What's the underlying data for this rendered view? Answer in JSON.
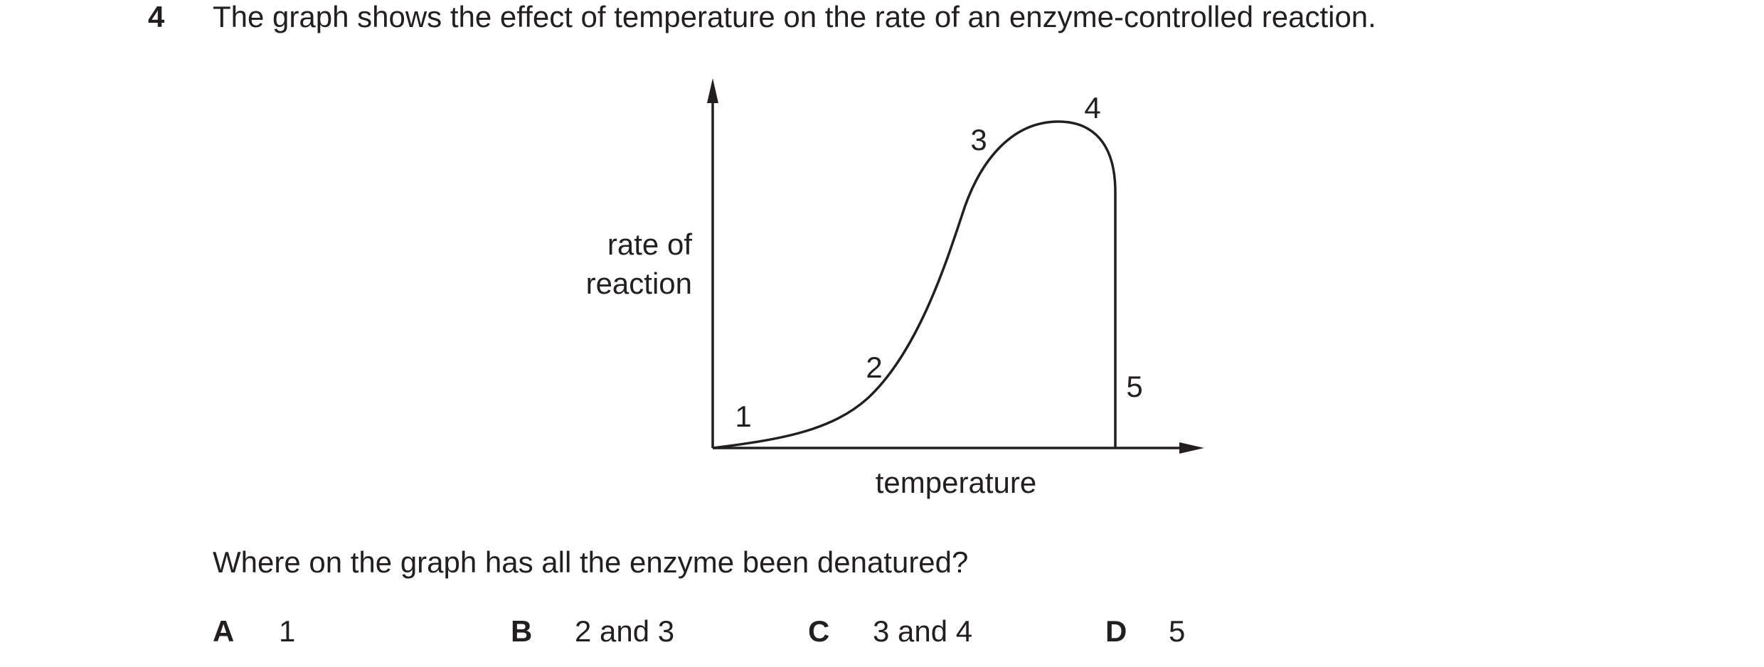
{
  "question": {
    "number": "4",
    "stem": "The graph shows the effect of temperature on the rate of an enzyme-controlled reaction.",
    "graph": {
      "y_axis_label": [
        "rate of",
        "reaction"
      ],
      "x_axis_label": "temperature",
      "point_labels": [
        "1",
        "2",
        "3",
        "4",
        "5"
      ]
    },
    "prompt": "Where on the graph has all the enzyme been denatured?",
    "options": [
      {
        "letter": "A",
        "text": "1"
      },
      {
        "letter": "B",
        "text": "2 and 3"
      },
      {
        "letter": "C",
        "text": "3 and 4"
      },
      {
        "letter": "D",
        "text": "5"
      }
    ]
  }
}
